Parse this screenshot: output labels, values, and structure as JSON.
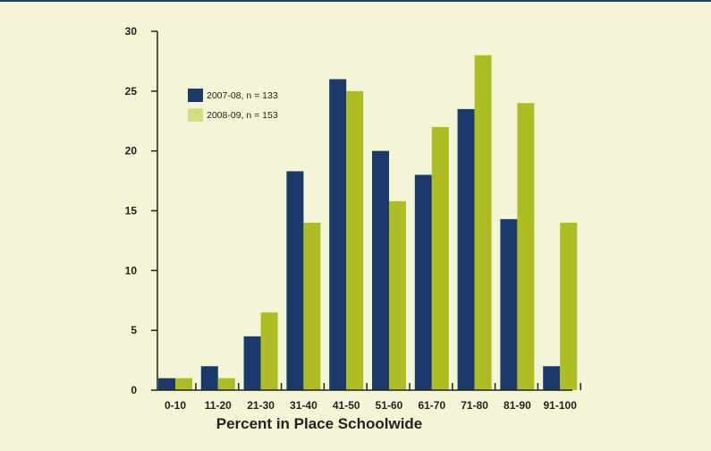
{
  "chart_data": {
    "type": "bar",
    "categories": [
      "0-10",
      "11-20",
      "21-30",
      "31-40",
      "41-50",
      "51-60",
      "61-70",
      "71-80",
      "81-90",
      "91-100"
    ],
    "series": [
      {
        "name": "2007-08, n = 133",
        "color": "#1a3a6b",
        "values": [
          1,
          2,
          4.5,
          18.3,
          26,
          20,
          18,
          23.5,
          14.3,
          2
        ]
      },
      {
        "name": "2008-09, n = 153",
        "color": "#aebd24",
        "values": [
          1,
          1,
          6.5,
          14,
          25,
          15.8,
          22,
          28,
          24,
          14
        ]
      }
    ],
    "xlabel": "Percent in Place Schoolwide",
    "ylabel": "",
    "ylim": [
      0,
      30
    ],
    "yticks": [
      0,
      5,
      10,
      15,
      20,
      25,
      30
    ],
    "legend_position": "top-left",
    "grid": false
  }
}
